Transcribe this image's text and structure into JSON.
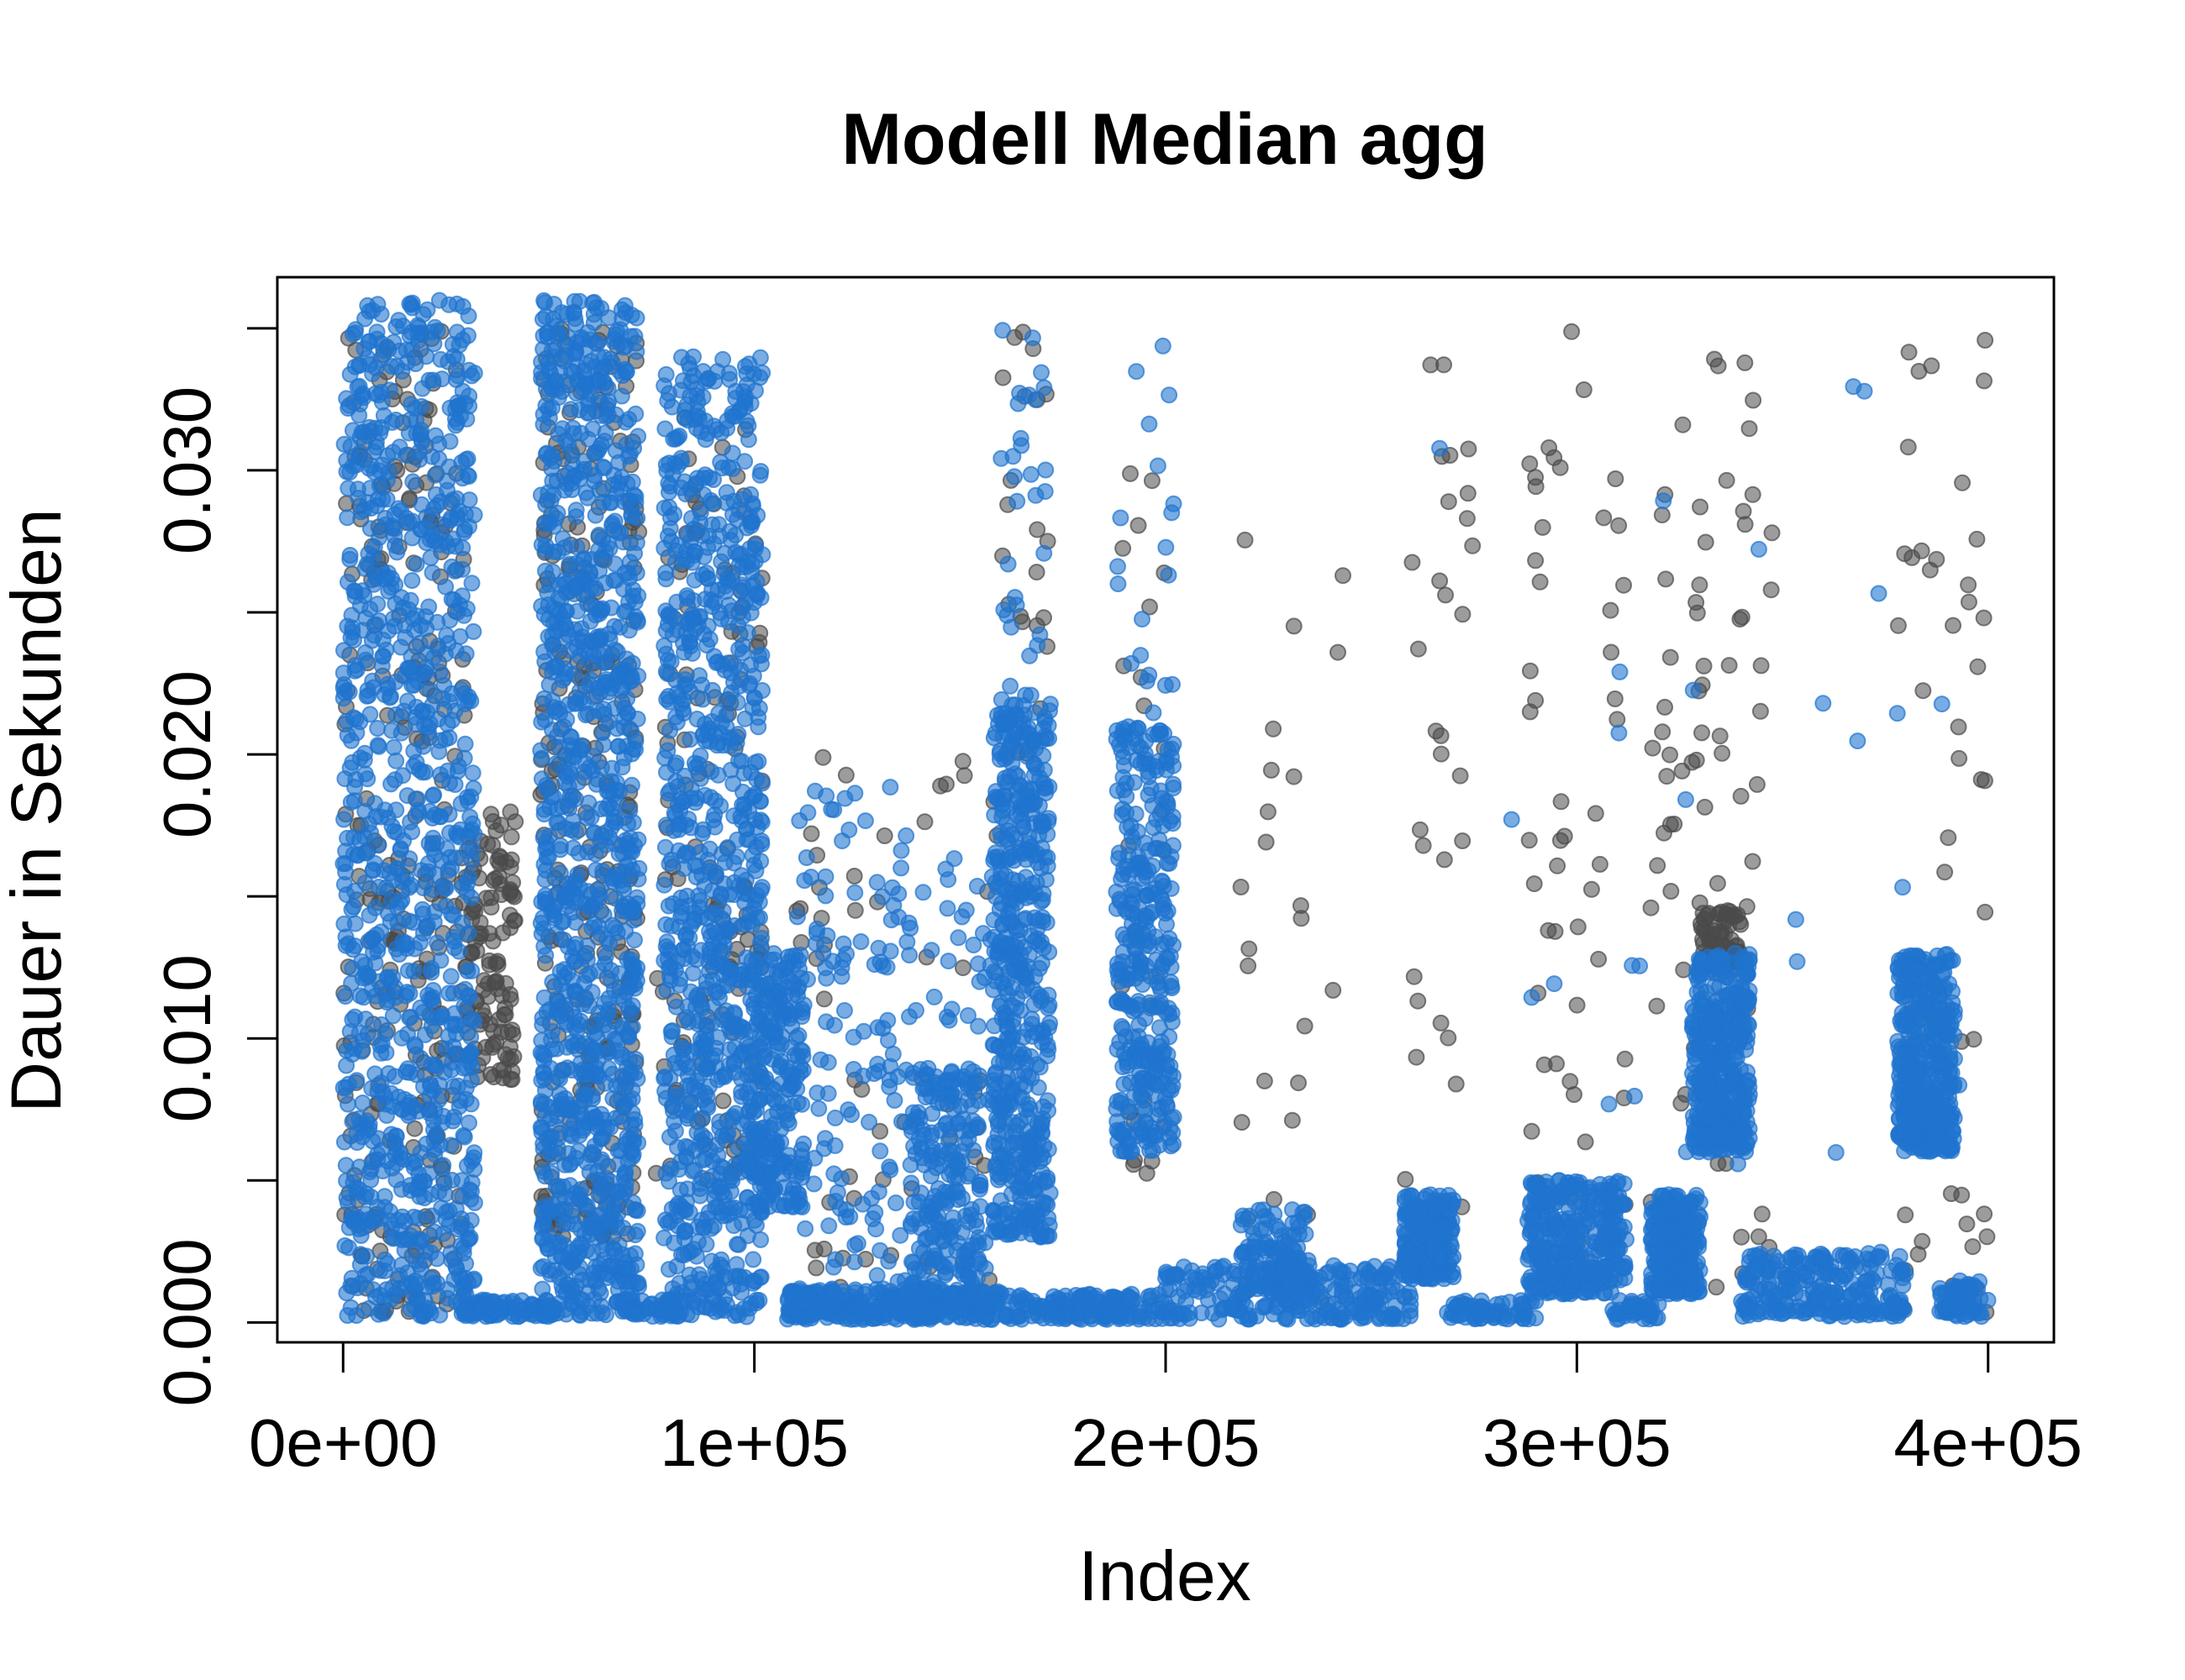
{
  "chart_data": {
    "type": "scatter",
    "title": "Modell Median agg",
    "xlabel": "Index",
    "ylabel": "Dauer in Sekunden",
    "xlim": [
      -16000,
      416000
    ],
    "ylim": [
      -0.0007,
      0.0368
    ],
    "x_ticks": [
      0,
      100000,
      200000,
      300000,
      400000
    ],
    "x_tick_labels": [
      "0e+00",
      "1e+05",
      "2e+05",
      "3e+05",
      "4e+05"
    ],
    "y_ticks": [
      0,
      0.005,
      0.01,
      0.015,
      0.02,
      0.025,
      0.03,
      0.035
    ],
    "y_tick_labels": [
      "0.000",
      "",
      "0.010",
      "",
      "0.020",
      "",
      "0.030",
      ""
    ],
    "grid": false,
    "legend": "none",
    "series": [
      {
        "color": "#4a4a4a",
        "clusters": [
          {
            "x": [
              0,
              30000
            ],
            "y": [
              0.0003,
              0.035
            ],
            "n": 260
          },
          {
            "x": [
              30000,
              42000
            ],
            "y": [
              0.0085,
              0.018
            ],
            "n": 120
          },
          {
            "x": [
              48000,
              72000
            ],
            "y": [
              0.003,
              0.036
            ],
            "n": 260
          },
          {
            "x": [
              76000,
              102000
            ],
            "y": [
              0.005,
              0.032
            ],
            "n": 120
          },
          {
            "x": [
              108000,
              160000
            ],
            "y": [
              0.0005,
              0.02
            ],
            "n": 60
          },
          {
            "x": [
              160000,
              172000
            ],
            "y": [
              0.02,
              0.0355
            ],
            "n": 25
          },
          {
            "x": [
              188000,
              200000
            ],
            "y": [
              0.005,
              0.0315
            ],
            "n": 25
          },
          {
            "x": [
              218000,
              245000
            ],
            "y": [
              0.0003,
              0.028
            ],
            "n": 25
          },
          {
            "x": [
              258000,
              275000
            ],
            "y": [
              0.003,
              0.036
            ],
            "n": 30
          },
          {
            "x": [
              288000,
              312000
            ],
            "y": [
              0.002,
              0.035
            ],
            "n": 50
          },
          {
            "x": [
              318000,
              348000
            ],
            "y": [
              0.001,
              0.034
            ],
            "n": 80
          },
          {
            "x": [
              330000,
              340000
            ],
            "y": [
              0.0125,
              0.0145
            ],
            "n": 70
          },
          {
            "x": [
              378000,
              400000
            ],
            "y": [
              0.0003,
              0.035
            ],
            "n": 50
          }
        ]
      },
      {
        "color": "#1f74cf",
        "clusters": [
          {
            "x": [
              0,
              32000
            ],
            "y": [
              0.0002,
              0.036
            ],
            "n": 1000
          },
          {
            "x": [
              28000,
              52000
            ],
            "y": [
              0.0002,
              0.0008
            ],
            "n": 80
          },
          {
            "x": [
              48000,
              72000
            ],
            "y": [
              0.0002,
              0.036
            ],
            "n": 1100
          },
          {
            "x": [
              68000,
              82000
            ],
            "y": [
              0.0002,
              0.0008
            ],
            "n": 40
          },
          {
            "x": [
              78000,
              102000
            ],
            "y": [
              0.0002,
              0.034
            ],
            "n": 900
          },
          {
            "x": [
              98000,
              112000
            ],
            "y": [
              0.004,
              0.013
            ],
            "n": 250
          },
          {
            "x": [
              108000,
              160000
            ],
            "y": [
              0.0001,
              0.0012
            ],
            "n": 300
          },
          {
            "x": [
              110000,
              160000
            ],
            "y": [
              0.001,
              0.019
            ],
            "n": 200
          },
          {
            "x": [
              138000,
              155000
            ],
            "y": [
              0.001,
              0.009
            ],
            "n": 200
          },
          {
            "x": [
              158000,
              172000
            ],
            "y": [
              0.003,
              0.022
            ],
            "n": 500
          },
          {
            "x": [
              160000,
              172000
            ],
            "y": [
              0.02,
              0.0355
            ],
            "n": 40
          },
          {
            "x": [
              160000,
              200000
            ],
            "y": [
              0.0001,
              0.001
            ],
            "n": 150
          },
          {
            "x": [
              188000,
              202000
            ],
            "y": [
              0.006,
              0.021
            ],
            "n": 350
          },
          {
            "x": [
              188000,
              202000
            ],
            "y": [
              0.021,
              0.036
            ],
            "n": 20
          },
          {
            "x": [
              200000,
              260000
            ],
            "y": [
              0.0001,
              0.002
            ],
            "n": 250
          },
          {
            "x": [
              218000,
              235000
            ],
            "y": [
              0.001,
              0.004
            ],
            "n": 120
          },
          {
            "x": [
              258000,
              270000
            ],
            "y": [
              0.0015,
              0.0045
            ],
            "n": 200
          },
          {
            "x": [
              268000,
              290000
            ],
            "y": [
              0.0001,
              0.0008
            ],
            "n": 60
          },
          {
            "x": [
              288000,
              312000
            ],
            "y": [
              0.001,
              0.005
            ],
            "n": 350
          },
          {
            "x": [
              308000,
              320000
            ],
            "y": [
              0.0001,
              0.0008
            ],
            "n": 40
          },
          {
            "x": [
              318000,
              330000
            ],
            "y": [
              0.001,
              0.0045
            ],
            "n": 250
          },
          {
            "x": [
              328000,
              342000
            ],
            "y": [
              0.006,
              0.013
            ],
            "n": 400
          },
          {
            "x": [
              340000,
              380000
            ],
            "y": [
              0.0002,
              0.0025
            ],
            "n": 250
          },
          {
            "x": [
              378000,
              392000
            ],
            "y": [
              0.006,
              0.013
            ],
            "n": 400
          },
          {
            "x": [
              388000,
              400000
            ],
            "y": [
              0.0002,
              0.0015
            ],
            "n": 60
          },
          {
            "x": [
              250000,
              395000
            ],
            "y": [
              0.005,
              0.034
            ],
            "n": 30
          }
        ]
      }
    ]
  }
}
